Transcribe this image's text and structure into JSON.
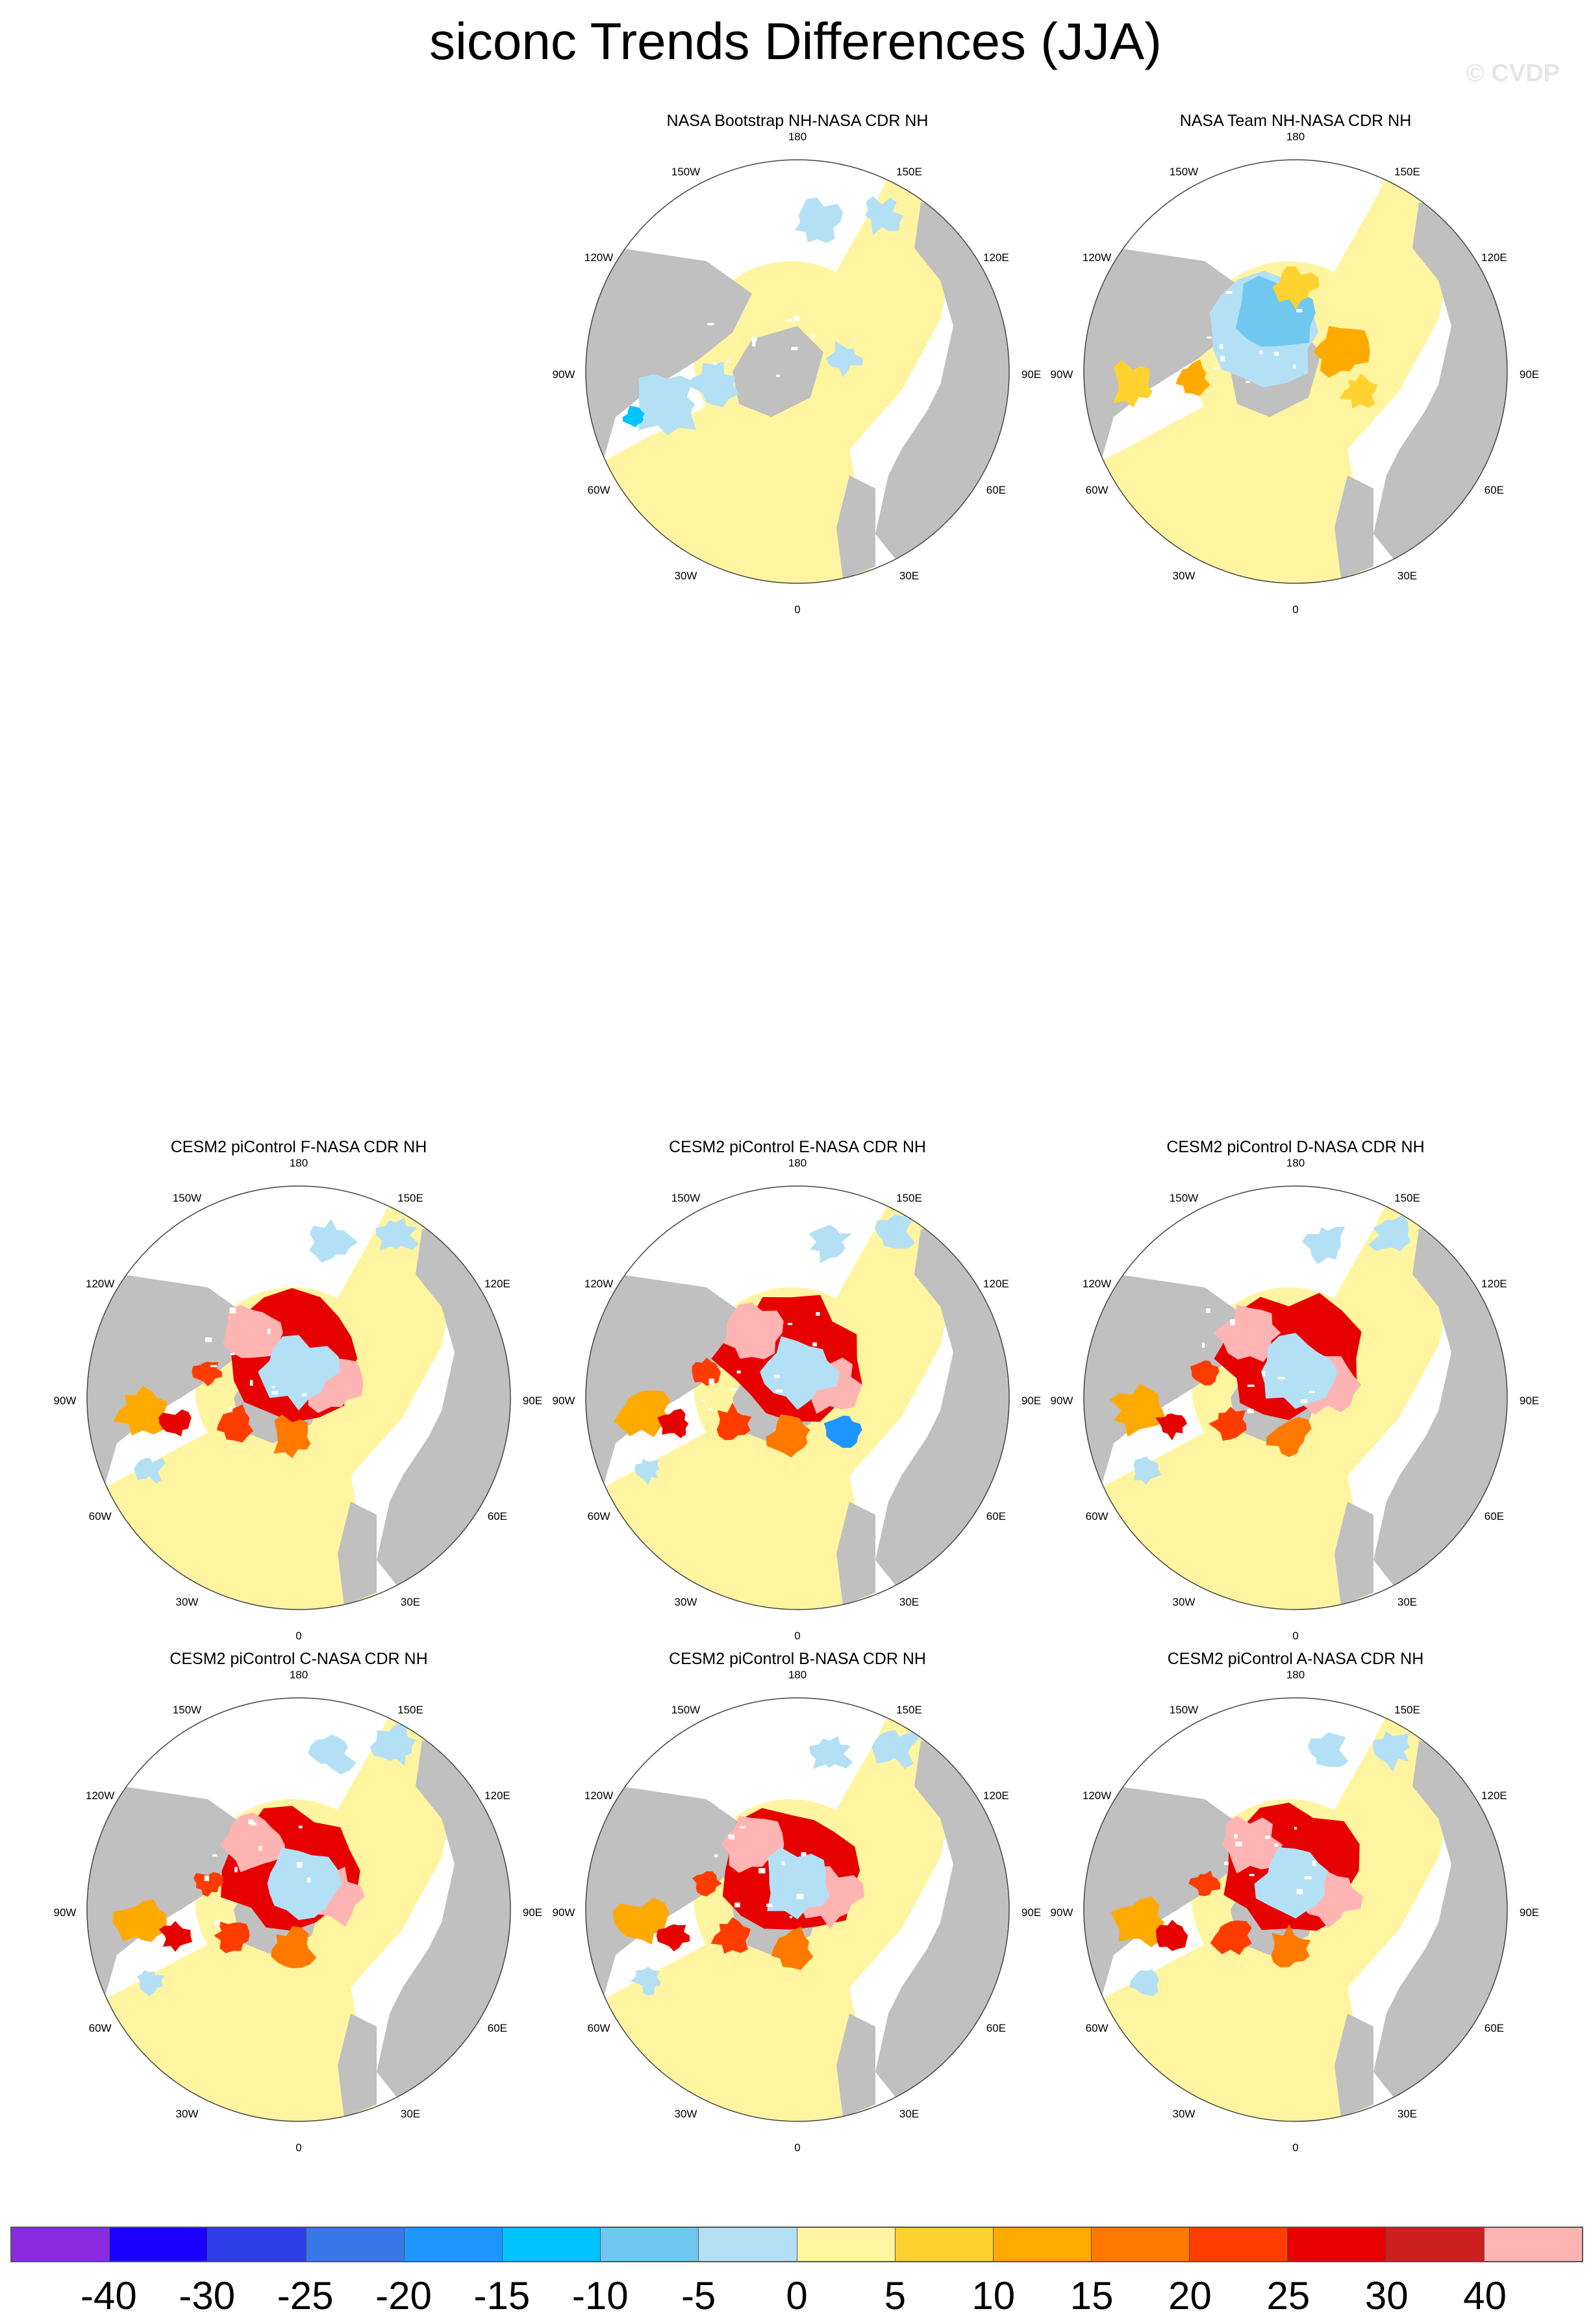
{
  "title": "siconc Trends Differences (JJA)",
  "watermark": "© CVDP",
  "longitude_labels": [
    "180",
    "150E",
    "120E",
    "90E",
    "60E",
    "30E",
    "0",
    "30W",
    "60W",
    "90W",
    "120W",
    "150W"
  ],
  "colors": {
    "land": "#c0c0c0",
    "ocean_near_zero": "#fff5a0",
    "missing": "#ffffff"
  },
  "panels": [
    {
      "id": "bootstrap",
      "title": "NASA Bootstrap NH-NASA CDR NH",
      "pattern": "obs-bootstrap"
    },
    {
      "id": "team",
      "title": "NASA Team NH-NASA CDR NH",
      "pattern": "obs-team"
    },
    {
      "id": "cesm-f",
      "title": "CESM2 piControl F-NASA CDR NH",
      "pattern": "model"
    },
    {
      "id": "cesm-e",
      "title": "CESM2 piControl E-NASA CDR NH",
      "pattern": "model"
    },
    {
      "id": "cesm-d",
      "title": "CESM2 piControl D-NASA CDR NH",
      "pattern": "model"
    },
    {
      "id": "cesm-c",
      "title": "CESM2 piControl C-NASA CDR NH",
      "pattern": "model"
    },
    {
      "id": "cesm-b",
      "title": "CESM2 piControl B-NASA CDR NH",
      "pattern": "model"
    },
    {
      "id": "cesm-a",
      "title": "CESM2 piControl A-NASA CDR NH",
      "pattern": "model"
    }
  ],
  "colorbar": {
    "colors": [
      "#8a2be2",
      "#1a00ff",
      "#2d3ee6",
      "#3877e6",
      "#1e96ff",
      "#00c4ff",
      "#70c8f0",
      "#b4e0f5",
      "#fff5a0",
      "#ffd230",
      "#ffaa00",
      "#ff7800",
      "#ff3c00",
      "#e60000",
      "#cc2020",
      "#ffb4b4"
    ],
    "labels": [
      "-40",
      "-30",
      "-25",
      "-20",
      "-15",
      "-10",
      "-5",
      "0",
      "5",
      "10",
      "15",
      "20",
      "25",
      "30",
      "40"
    ]
  }
}
